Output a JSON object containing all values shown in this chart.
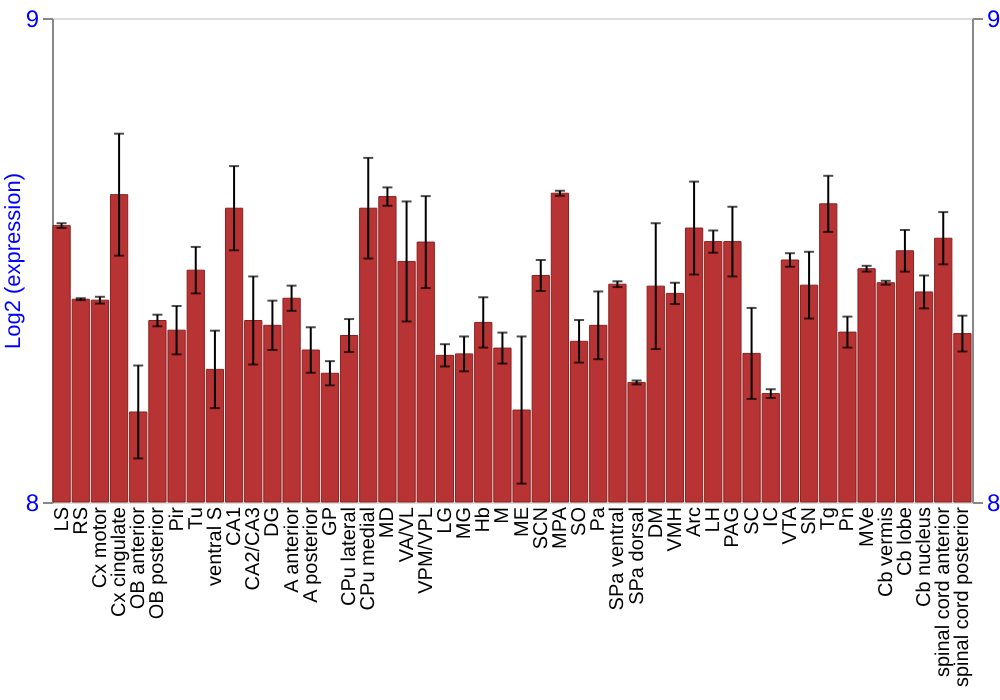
{
  "chart_data": {
    "type": "bar",
    "ylabel": "Log2 (expression)",
    "categories": [
      "LS",
      "RS",
      "Cx motor",
      "Cx cingulate",
      "OB anterior",
      "OB posterior",
      "Pir",
      "Tu",
      "ventral S",
      "CA1",
      "CA2/CA3",
      "DG",
      "A anterior",
      "A posterior",
      "GP",
      "CPu lateral",
      "CPu medial",
      "MD",
      "VA/VL",
      "VPM/VPL",
      "LG",
      "MG",
      "Hb",
      "M",
      "ME",
      "SCN",
      "MPA",
      "SO",
      "Pa",
      "SPa ventral",
      "SPa dorsal",
      "DM",
      "VMH",
      "Arc",
      "LH",
      "PAG",
      "SC",
      "IC",
      "VTA",
      "SN",
      "Tg",
      "Pn",
      "MVe",
      "Cb vermis",
      "Cb lobe",
      "Cb nucleus",
      "spinal cord anterior",
      "spinal cord posterior"
    ],
    "series": [
      {
        "color": "#b83434",
        "values": [
          8.571,
          8.419,
          8.417,
          8.635,
          8.186,
          8.375,
          8.355,
          8.479,
          8.274,
          8.607,
          8.375,
          8.365,
          8.421,
          8.314,
          8.266,
          8.344,
          8.607,
          8.631,
          8.497,
          8.537,
          8.303,
          8.306,
          8.371,
          8.318,
          8.19,
          8.468,
          8.638,
          8.332,
          8.365,
          8.45,
          8.247,
          8.446,
          8.431,
          8.566,
          8.538,
          8.538,
          8.307,
          8.224,
          8.5,
          8.448,
          8.616,
          8.351,
          8.482,
          8.453,
          8.519,
          8.434,
          8.545,
          8.348
        ],
        "errors": [
          0.005,
          0.002,
          0.007,
          0.126,
          0.096,
          0.012,
          0.05,
          0.048,
          0.08,
          0.087,
          0.091,
          0.051,
          0.026,
          0.047,
          0.025,
          0.034,
          0.104,
          0.019,
          0.124,
          0.095,
          0.023,
          0.036,
          0.052,
          0.032,
          0.152,
          0.032,
          0.005,
          0.044,
          0.07,
          0.006,
          0.004,
          0.13,
          0.022,
          0.096,
          0.023,
          0.072,
          0.094,
          0.009,
          0.014,
          0.069,
          0.058,
          0.032,
          0.006,
          0.004,
          0.043,
          0.034,
          0.054,
          0.037
        ]
      }
    ],
    "ylim": [
      8,
      9
    ],
    "yticks": [
      8,
      9
    ],
    "y2lim": [
      8,
      9
    ],
    "y2ticks": [
      8,
      9
    ]
  }
}
